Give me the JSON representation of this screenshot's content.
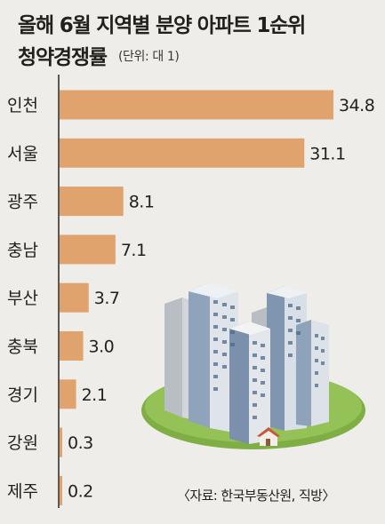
{
  "title": {
    "line1": "올해 6월 지역별 분양 아파트 1순위",
    "line2": "청약경쟁률",
    "unit": "(단위: 대 1)"
  },
  "source": "〈자료: 한국부동산원, 직방〉",
  "colors": {
    "background": "#eeede9",
    "bar": "#e1a36e",
    "axis": "#2a2623",
    "text": "#231f1c"
  },
  "chart_data": {
    "type": "bar",
    "orientation": "horizontal",
    "categories": [
      "인천",
      "서울",
      "광주",
      "충남",
      "부산",
      "충북",
      "경기",
      "강원",
      "제주"
    ],
    "values": [
      34.8,
      31.1,
      8.1,
      7.1,
      3.7,
      3.0,
      2.1,
      0.3,
      0.2
    ],
    "value_labels": [
      "34.8",
      "31.1",
      "8.1",
      "7.1",
      "3.7",
      "3.0",
      "2.1",
      "0.3",
      "0.2"
    ],
    "xlim": [
      0,
      34.8
    ],
    "grid": false,
    "legend": "none"
  }
}
